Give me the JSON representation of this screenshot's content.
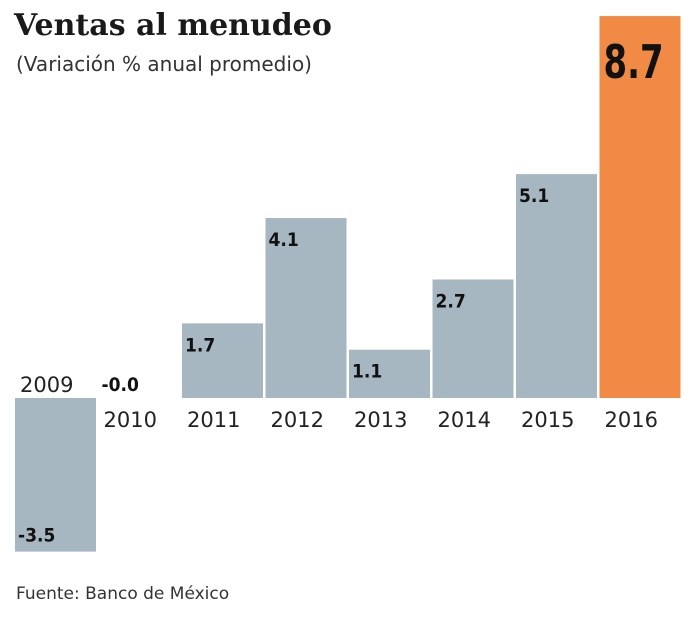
{
  "chart_data": {
    "type": "bar",
    "title": "Ventas al menudeo",
    "subtitle": "(Variación % anual promedio)",
    "categories": [
      "2009",
      "2010",
      "2011",
      "2012",
      "2013",
      "2014",
      "2015",
      "2016"
    ],
    "values": [
      -3.5,
      -0.0,
      1.7,
      4.1,
      1.1,
      2.7,
      5.1,
      8.7
    ],
    "value_labels": [
      "-3.5",
      "-0.0",
      "1.7",
      "4.1",
      "1.1",
      "2.7",
      "5.1",
      "8.7"
    ],
    "highlight_category": "2016",
    "colors": {
      "default": "#a7b7c1",
      "highlight": "#f08a45"
    },
    "grid": false,
    "source": "Fuente: Banco de México"
  }
}
